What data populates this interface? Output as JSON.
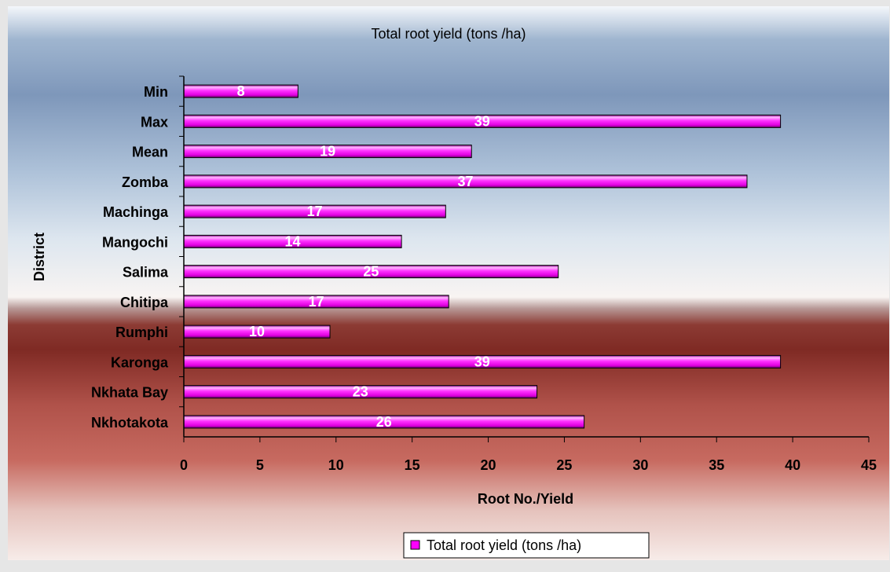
{
  "chart_data": {
    "type": "bar",
    "orientation": "horizontal",
    "title": "Total root yield (tons /ha)",
    "xlabel": "Root No./Yield",
    "ylabel": "District",
    "xlim": [
      0,
      45
    ],
    "xticks": [
      0,
      5,
      10,
      15,
      20,
      25,
      30,
      35,
      40,
      45
    ],
    "categories": [
      "Min",
      "Max",
      "Mean",
      "Zomba",
      "Machinga",
      "Mangochi",
      "Salima",
      "Chitipa",
      "Rumphi",
      "Karonga",
      "Nkhata Bay",
      "Nkhotakota"
    ],
    "series": [
      {
        "name": "Total root yield (tons /ha)",
        "values": [
          7.5,
          39.2,
          18.9,
          37.0,
          17.2,
          14.3,
          24.6,
          17.4,
          9.6,
          39.2,
          23.2,
          26.3
        ],
        "labels": [
          "8",
          "39",
          "19",
          "37",
          "17",
          "14",
          "25",
          "17",
          "10",
          "39",
          "23",
          "26"
        ]
      }
    ],
    "grid": false,
    "legend": "bottom"
  },
  "colors": {
    "bar_fill": "#ff00ff",
    "bar_highlight": "#ffccff",
    "bar_shadow": "#7a007a",
    "axis": "#000000"
  }
}
